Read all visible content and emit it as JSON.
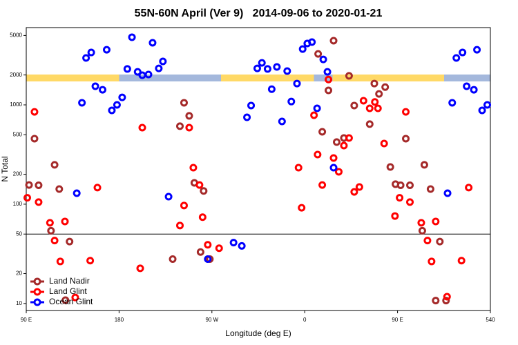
{
  "chart_data": {
    "type": "scatter",
    "title": "55N-60N April (Ver 9)   2014-09-06 to 2020-01-21",
    "xlabel": "Longitude (deg E)",
    "ylabel": "N Total",
    "xlim": [
      90,
      540
    ],
    "ylim": [
      8.5,
      6000
    ],
    "ylog": true,
    "reference_line": 50,
    "legend": "bottom-left",
    "xticks": [
      {
        "value": 90,
        "label": "90 E"
      },
      180,
      {
        "value": 270,
        "label": "90 W"
      },
      {
        "value": 360,
        "label": "0"
      },
      {
        "value": 450,
        "label": "90 E"
      },
      540
    ],
    "yticks": [
      10,
      20,
      50,
      100,
      200,
      500,
      1000,
      2000,
      5000
    ],
    "series": [
      {
        "name": "Land Nadir",
        "color": "#a52a2a",
        "x": [
          92.7,
          98,
          102,
          117.5,
          114,
          122,
          132,
          128,
          232,
          239,
          243,
          248,
          253,
          259,
          262,
          268,
          373,
          388,
          377,
          383,
          391,
          398,
          403,
          408,
          423,
          427.5,
          432,
          438,
          443,
          448,
          453,
          458,
          462,
          476,
          474,
          482,
          491,
          487,
          497
        ],
        "values": [
          156,
          457,
          155,
          249,
          54,
          142,
          42,
          10.8,
          28,
          610,
          1050,
          775,
          164,
          33,
          136,
          28,
          3260,
          4430,
          536,
          1400,
          422,
          464,
          1960,
          985,
          640,
          1640,
          1290,
          1510,
          237,
          159,
          155,
          457,
          155,
          249,
          54,
          142,
          42,
          10.7,
          10.7
        ]
      },
      {
        "name": "Land Glint",
        "color": "#ff0000",
        "x": [
          91,
          98,
          102,
          113,
          117.5,
          123,
          127.5,
          137.5,
          152,
          159,
          200.5,
          202.5,
          239,
          243,
          248,
          252,
          258,
          261,
          266,
          277,
          354,
          357,
          369,
          372.5,
          377,
          383,
          388,
          393,
          398,
          403,
          408,
          413,
          417,
          423,
          428,
          431,
          437,
          447.5,
          452,
          458,
          462,
          473,
          479,
          483,
          487,
          498,
          512,
          519
        ],
        "values": [
          116,
          851,
          105,
          65,
          43,
          26.5,
          67,
          11.5,
          27,
          147,
          22.6,
          590,
          61,
          97,
          590,
          233,
          156,
          74,
          39,
          36,
          233,
          92,
          787,
          316,
          156,
          1800,
          292,
          212,
          389,
          464,
          133,
          149,
          1100,
          923,
          1070,
          923,
          408,
          76,
          116,
          851,
          105,
          65,
          43,
          26.5,
          67,
          11.7,
          27,
          147
        ]
      },
      {
        "name": "Ocean Glint",
        "color": "#0000ff",
        "x": [
          139,
          144,
          148,
          153,
          157,
          164,
          168,
          173,
          178,
          183,
          188,
          192.5,
          198,
          202.5,
          208.5,
          212.5,
          218.5,
          222.5,
          228,
          266,
          291,
          299,
          304,
          308,
          314,
          318.5,
          324,
          328,
          333,
          338,
          343,
          347,
          352.5,
          358,
          362.5,
          367,
          372,
          378,
          382,
          388,
          498.5,
          503,
          507,
          513,
          517,
          524,
          527,
          532,
          537
        ],
        "values": [
          129,
          1050,
          2970,
          3370,
          1540,
          1420,
          3590,
          880,
          1000,
          1190,
          2300,
          4800,
          2150,
          1990,
          2020,
          4220,
          2330,
          2740,
          119,
          28,
          41,
          38,
          750,
          985,
          2330,
          2650,
          2300,
          1440,
          2410,
          681,
          2190,
          1080,
          1640,
          3650,
          4150,
          4290,
          923,
          2870,
          2150,
          233,
          129,
          1050,
          2970,
          3370,
          1540,
          1420,
          3590,
          880,
          1000
        ]
      }
    ]
  }
}
